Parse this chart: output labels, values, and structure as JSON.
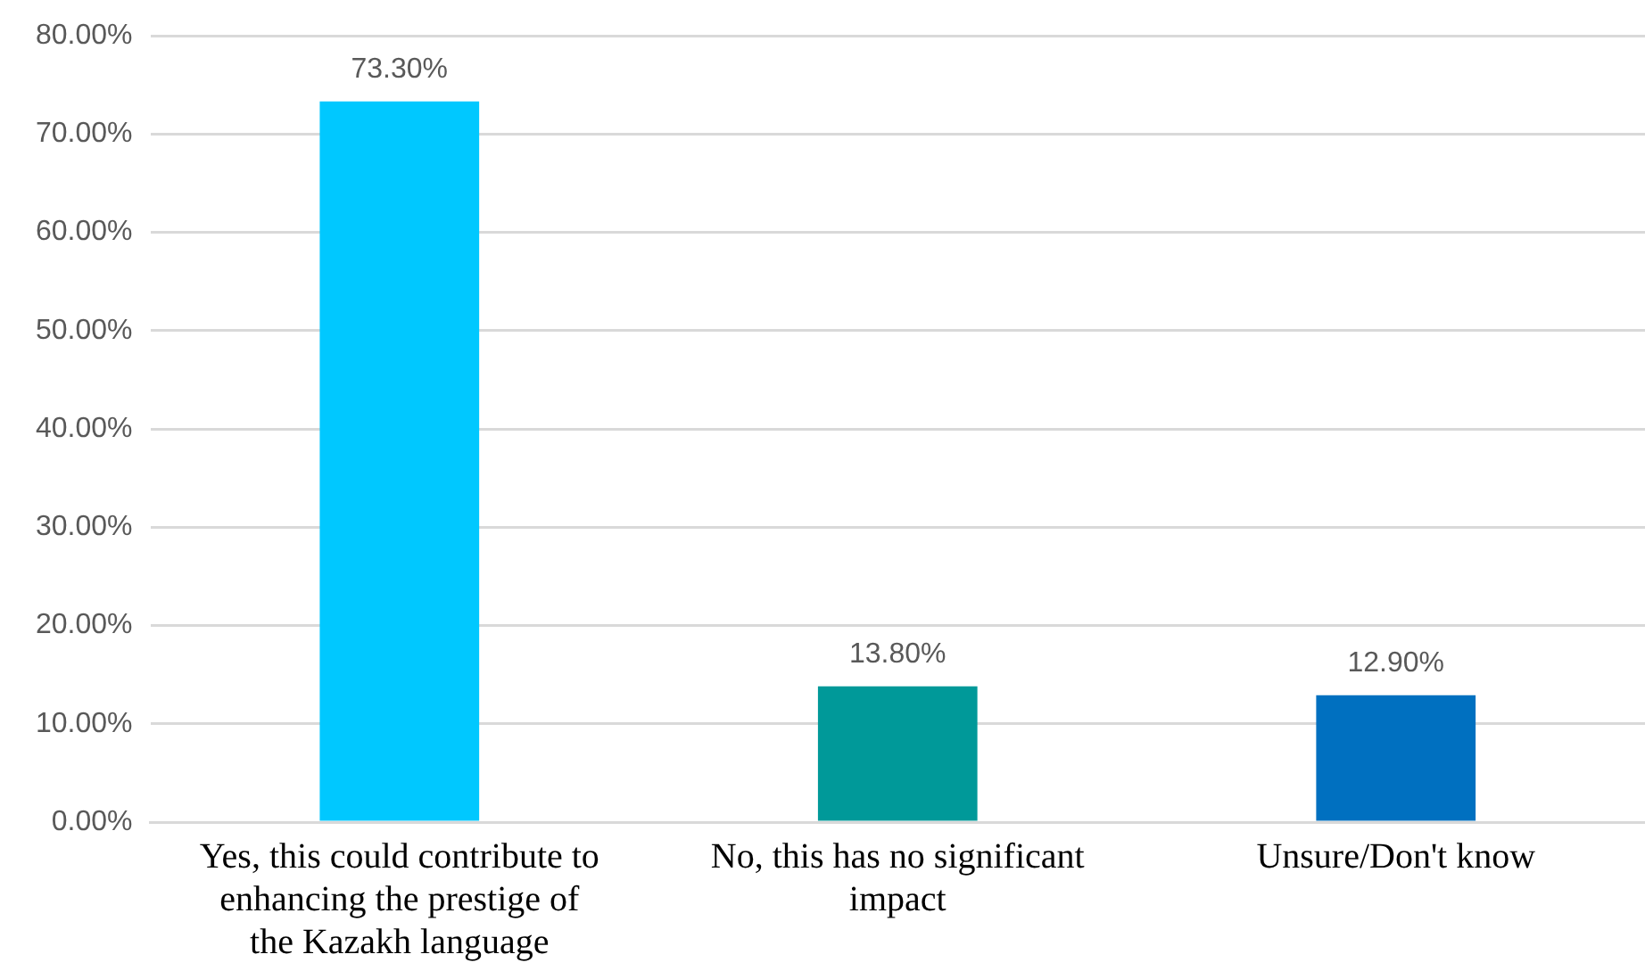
{
  "chart_data": {
    "type": "bar",
    "categories": [
      "Yes, this could contribute to enhancing the prestige of the Kazakh language",
      "No, this has no significant impact",
      "Unsure/Don't know"
    ],
    "values": [
      73.3,
      13.8,
      12.9
    ],
    "colors": [
      "#00c8ff",
      "#009999",
      "#0070c0"
    ],
    "value_labels": [
      "73.30%",
      "13.80%",
      "12.90%"
    ],
    "ylim": [
      0,
      80
    ],
    "yticks": [
      {
        "value": 0,
        "label": "0.00%"
      },
      {
        "value": 10,
        "label": "10.00%"
      },
      {
        "value": 20,
        "label": "20.00%"
      },
      {
        "value": 30,
        "label": "30.00%"
      },
      {
        "value": 40,
        "label": "40.00%"
      },
      {
        "value": 50,
        "label": "50.00%"
      },
      {
        "value": 60,
        "label": "60.00%"
      },
      {
        "value": 70,
        "label": "70.00%"
      },
      {
        "value": 80,
        "label": "80.00%"
      }
    ],
    "grid": "y",
    "legend": false
  }
}
